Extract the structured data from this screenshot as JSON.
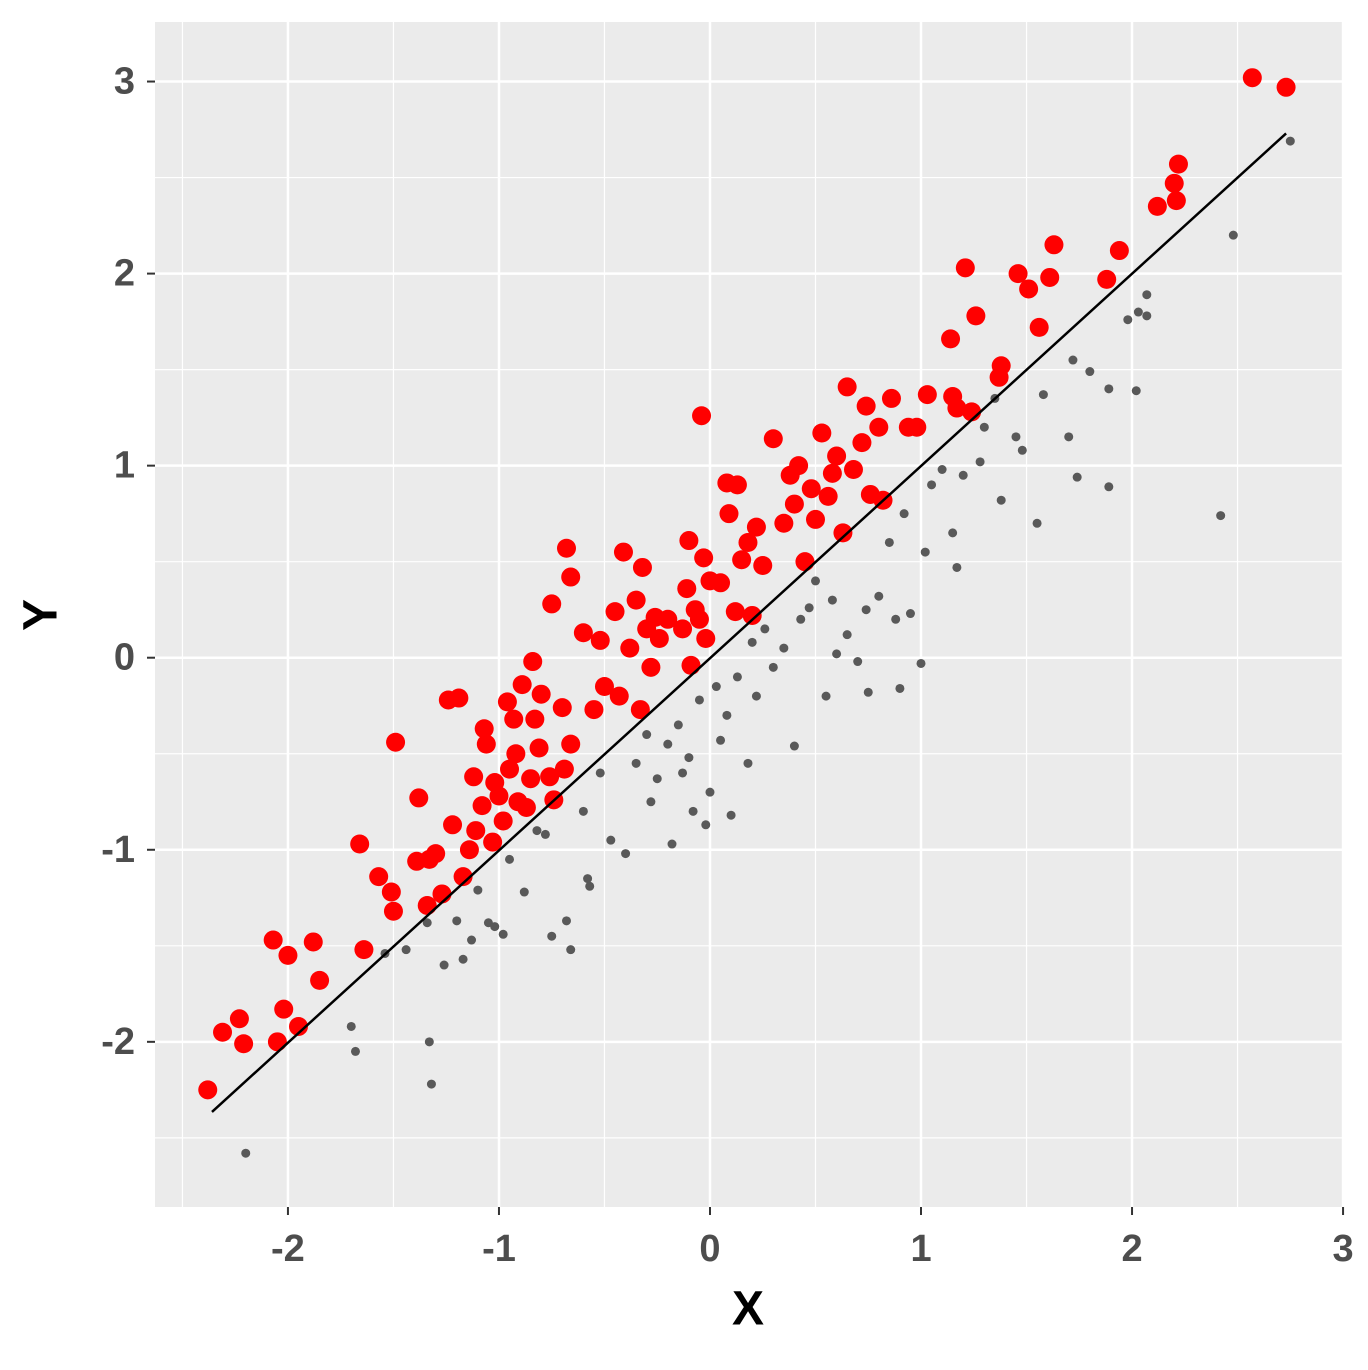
{
  "chart_data": {
    "type": "scatter",
    "x_label": "X",
    "y_label": "Y",
    "xlim": [
      -2.63,
      2.995
    ],
    "ylim": [
      -2.86,
      3.31
    ],
    "xticks": [
      -2,
      -1,
      0,
      1,
      2,
      3
    ],
    "yticks": [
      -2,
      -1,
      0,
      1,
      2,
      3
    ],
    "grid": true,
    "minor_grid": true,
    "series": [
      {
        "color": "#ff0000",
        "size": 9.5,
        "x": [
          -2.38,
          -2.31,
          -2.23,
          -2.21,
          -2.07,
          -2.05,
          -2.02,
          -2.0,
          -1.95,
          -1.88,
          -1.85,
          -1.66,
          -1.64,
          -1.57,
          -1.51,
          -1.5,
          -1.49,
          -1.39,
          -1.38,
          -1.34,
          -1.33,
          -1.3,
          -1.27,
          -1.24,
          -1.22,
          -1.19,
          -1.17,
          -1.14,
          -1.12,
          -1.11,
          -1.08,
          -1.07,
          -1.06,
          -1.03,
          -1.02,
          -1.0,
          -0.98,
          -0.96,
          -0.95,
          -0.93,
          -0.92,
          -0.91,
          -0.89,
          -0.87,
          -0.85,
          -0.84,
          -0.83,
          -0.81,
          -0.8,
          -0.76,
          -0.75,
          -0.74,
          -0.7,
          -0.69,
          -0.68,
          -0.66,
          -0.66,
          -0.6,
          -0.55,
          -0.52,
          -0.5,
          -0.45,
          -0.43,
          -0.41,
          -0.38,
          -0.35,
          -0.33,
          -0.32,
          -0.3,
          -0.28,
          -0.26,
          -0.24,
          -0.2,
          -0.13,
          -0.11,
          -0.1,
          -0.09,
          -0.07,
          -0.05,
          -0.04,
          -0.03,
          -0.02,
          0.0,
          0.05,
          0.08,
          0.09,
          0.12,
          0.13,
          0.15,
          0.18,
          0.2,
          0.22,
          0.25,
          0.3,
          0.35,
          0.38,
          0.4,
          0.42,
          0.45,
          0.48,
          0.5,
          0.53,
          0.56,
          0.58,
          0.6,
          0.63,
          0.65,
          0.68,
          0.72,
          0.74,
          0.76,
          0.8,
          0.82,
          0.86,
          0.94,
          0.98,
          1.03,
          1.14,
          1.15,
          1.17,
          1.21,
          1.24,
          1.26,
          1.37,
          1.38,
          1.46,
          1.51,
          1.56,
          1.61,
          1.63,
          1.88,
          1.94,
          2.12,
          2.2,
          2.21,
          2.22,
          2.57,
          2.73
        ],
        "values": [
          -2.25,
          -1.95,
          -1.88,
          -2.01,
          -1.47,
          -2.0,
          -1.83,
          -1.55,
          -1.92,
          -1.48,
          -1.68,
          -0.97,
          -1.52,
          -1.14,
          -1.22,
          -1.32,
          -0.44,
          -1.06,
          -0.73,
          -1.29,
          -1.05,
          -1.02,
          -1.23,
          -0.22,
          -0.87,
          -0.21,
          -1.14,
          -1.0,
          -0.62,
          -0.9,
          -0.77,
          -0.37,
          -0.45,
          -0.96,
          -0.65,
          -0.72,
          -0.85,
          -0.23,
          -0.58,
          -0.32,
          -0.5,
          -0.75,
          -0.14,
          -0.78,
          -0.63,
          -0.02,
          -0.32,
          -0.47,
          -0.19,
          -0.62,
          0.28,
          -0.74,
          -0.26,
          -0.58,
          0.57,
          0.42,
          -0.45,
          0.13,
          -0.27,
          0.09,
          -0.15,
          0.24,
          -0.2,
          0.55,
          0.05,
          0.3,
          -0.27,
          0.47,
          0.15,
          -0.05,
          0.21,
          0.1,
          0.2,
          0.15,
          0.36,
          0.61,
          -0.04,
          0.25,
          0.2,
          1.26,
          0.52,
          0.1,
          0.4,
          0.39,
          0.91,
          0.75,
          0.24,
          0.9,
          0.51,
          0.6,
          0.22,
          0.68,
          0.48,
          1.14,
          0.7,
          0.95,
          0.8,
          1.0,
          0.5,
          0.88,
          0.72,
          1.17,
          0.84,
          0.96,
          1.05,
          0.65,
          1.41,
          0.98,
          1.12,
          1.31,
          0.85,
          1.2,
          0.82,
          1.35,
          1.2,
          1.2,
          1.37,
          1.66,
          1.36,
          1.3,
          2.03,
          1.28,
          1.78,
          1.46,
          1.52,
          2.0,
          1.92,
          1.72,
          1.98,
          2.15,
          1.97,
          2.12,
          2.35,
          2.47,
          2.38,
          2.57,
          3.02,
          2.97
        ]
      },
      {
        "color": "#595959",
        "size": 4.5,
        "x": [
          -2.2,
          -1.7,
          -1.68,
          -1.54,
          -1.44,
          -1.34,
          -1.32,
          -1.33,
          -1.26,
          -1.2,
          -1.17,
          -1.13,
          -1.1,
          -1.05,
          -1.02,
          -0.98,
          -0.95,
          -0.88,
          -0.82,
          -0.78,
          -0.75,
          -0.68,
          -0.66,
          -0.6,
          -0.58,
          -0.57,
          -0.52,
          -0.47,
          -0.4,
          -0.35,
          -0.3,
          -0.28,
          -0.25,
          -0.2,
          -0.18,
          -0.15,
          -0.13,
          -0.1,
          -0.08,
          -0.05,
          -0.02,
          0.0,
          0.03,
          0.05,
          0.08,
          0.1,
          0.13,
          0.18,
          0.2,
          0.22,
          0.26,
          0.3,
          0.35,
          0.4,
          0.43,
          0.47,
          0.5,
          0.55,
          0.58,
          0.6,
          0.65,
          0.7,
          0.74,
          0.75,
          0.8,
          0.85,
          0.88,
          0.9,
          0.92,
          0.95,
          1.0,
          1.02,
          1.05,
          1.1,
          1.15,
          1.17,
          1.2,
          1.28,
          1.3,
          1.35,
          1.38,
          1.45,
          1.48,
          1.55,
          1.58,
          1.7,
          1.72,
          1.74,
          1.8,
          1.89,
          1.89,
          1.98,
          2.02,
          2.03,
          2.07,
          2.07,
          2.42,
          2.48,
          2.75
        ],
        "values": [
          -2.58,
          -1.92,
          -2.05,
          -1.54,
          -1.52,
          -1.38,
          -2.22,
          -2.0,
          -1.6,
          -1.37,
          -1.57,
          -1.47,
          -1.21,
          -1.38,
          -1.4,
          -1.44,
          -1.05,
          -1.22,
          -0.9,
          -0.92,
          -1.45,
          -1.37,
          -1.52,
          -0.8,
          -1.15,
          -1.19,
          -0.6,
          -0.95,
          -1.02,
          -0.55,
          -0.4,
          -0.75,
          -0.63,
          -0.45,
          -0.97,
          -0.35,
          -0.6,
          -0.52,
          -0.8,
          -0.22,
          -0.87,
          -0.7,
          -0.15,
          -0.43,
          -0.3,
          -0.82,
          -0.1,
          -0.55,
          0.08,
          -0.2,
          0.15,
          -0.05,
          0.05,
          -0.46,
          0.2,
          0.26,
          0.4,
          -0.2,
          0.3,
          0.02,
          0.12,
          -0.02,
          0.25,
          -0.18,
          0.32,
          0.6,
          0.2,
          -0.16,
          0.75,
          0.23,
          -0.03,
          0.55,
          0.9,
          0.98,
          0.65,
          0.47,
          0.95,
          1.02,
          1.2,
          1.35,
          0.82,
          1.15,
          1.08,
          0.7,
          1.37,
          1.15,
          1.55,
          0.94,
          1.49,
          1.4,
          0.89,
          1.76,
          1.39,
          1.8,
          1.78,
          1.89,
          0.74,
          2.2,
          2.69
        ]
      }
    ],
    "fit_line": {
      "x": [
        -2.36,
        2.73
      ],
      "values": [
        -2.365,
        2.73
      ],
      "color": "#000000"
    }
  }
}
